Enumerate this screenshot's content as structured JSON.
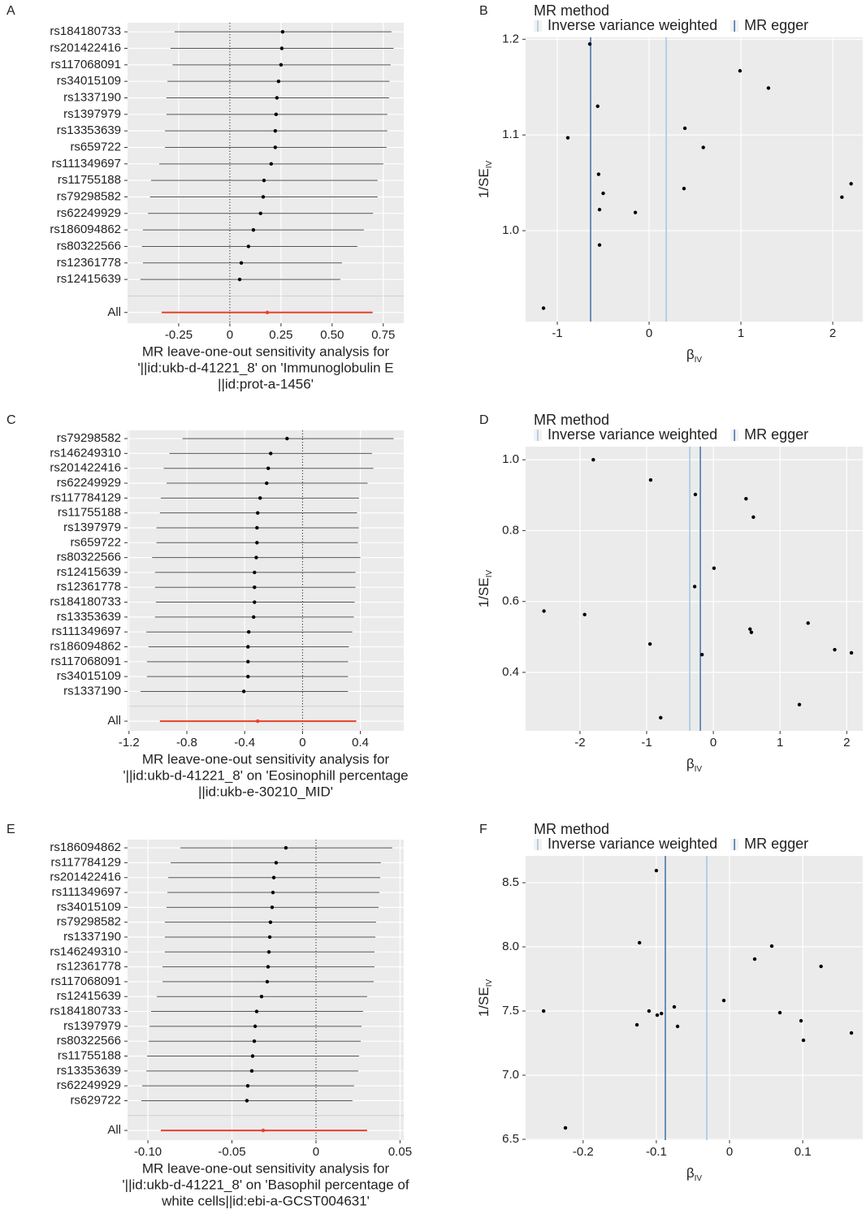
{
  "chart_data": [
    {
      "type": "forest",
      "panel_label": "A",
      "categories": [
        "rs184180733",
        "rs201422416",
        "rs117068091",
        "rs34015109",
        "rs1337190",
        "rs1397979",
        "rs13353639",
        "rs659722",
        "rs111349697",
        "rs11755188",
        "rs79298582",
        "rs62249929",
        "rs186094862",
        "rs80322566",
        "rs12361778",
        "rs12415639"
      ],
      "values": [
        0.258,
        0.254,
        0.25,
        0.238,
        0.23,
        0.226,
        0.222,
        0.222,
        0.202,
        0.167,
        0.163,
        0.15,
        0.115,
        0.091,
        0.056,
        0.048
      ],
      "lower": [
        -0.27,
        -0.29,
        -0.28,
        -0.305,
        -0.31,
        -0.31,
        -0.317,
        -0.317,
        -0.345,
        -0.385,
        -0.39,
        -0.4,
        -0.425,
        -0.43,
        -0.425,
        -0.437
      ],
      "upper": [
        0.79,
        0.8,
        0.786,
        0.78,
        0.778,
        0.77,
        0.77,
        0.766,
        0.75,
        0.722,
        0.722,
        0.7,
        0.655,
        0.623,
        0.548,
        0.54
      ],
      "color": "#000000",
      "overall": {
        "label": "All",
        "value": 0.183,
        "lower": -0.333,
        "upper": 0.698,
        "color": "#e8412c"
      },
      "reference_line": 0,
      "xlim": [
        -0.5,
        0.85
      ],
      "xticks": [
        -0.25,
        0,
        0.25,
        {
          "value": 0.5,
          "label": "0.50"
        },
        0.75
      ],
      "grid": true,
      "xlabel": [
        "MR leave-one-out sensitivity analysis for",
        "'||id:ukb-d-41221_8' on 'Immunoglobulin E",
        "||id:prot-a-1456'"
      ]
    },
    {
      "type": "scatter",
      "panel_label": "B",
      "legend_title": "MR method",
      "x": [
        -0.646,
        0.99,
        1.3,
        -0.56,
        -0.885,
        0.39,
        0.59,
        -0.55,
        2.2,
        -0.5,
        0.38,
        -0.54,
        -0.15,
        2.1,
        -0.54,
        -1.15
      ],
      "values": [
        1.195,
        1.167,
        1.149,
        1.13,
        1.097,
        1.107,
        1.087,
        1.059,
        1.049,
        1.039,
        1.044,
        1.022,
        1.019,
        1.035,
        0.985,
        0.919
      ],
      "color": "#000000",
      "vlines": [
        {
          "name": "Inverse variance weighted",
          "color": "#a6c8e6",
          "value": 0.186
        },
        {
          "name": "MR egger",
          "color": "#4a78ad",
          "value": -0.637
        }
      ],
      "xlim": [
        -1.345,
        2.327
      ],
      "xticks": [
        -1,
        0,
        1,
        2
      ],
      "ylim": [
        0.905,
        1.202
      ],
      "yticks": [
        {
          "value": 1,
          "label": "1.0"
        },
        1.1,
        1.2
      ],
      "grid": true,
      "xlabel": {
        "text": "β",
        "subscript": "IV"
      },
      "ylabel": {
        "text": "1/SE",
        "subscript": "IV"
      }
    },
    {
      "type": "forest",
      "panel_label": "C",
      "categories": [
        "rs79298582",
        "rs146249310",
        "rs201422416",
        "rs62249929",
        "rs117784129",
        "rs11755188",
        "rs1397979",
        "rs659722",
        "rs80322566",
        "rs12415639",
        "rs12361778",
        "rs184180733",
        "rs13353639",
        "rs111349697",
        "rs186094862",
        "rs117068091",
        "rs34015109",
        "rs1337190"
      ],
      "values": [
        -0.107,
        -0.22,
        -0.237,
        -0.248,
        -0.293,
        -0.31,
        -0.315,
        -0.315,
        -0.32,
        -0.332,
        -0.332,
        -0.332,
        -0.338,
        -0.372,
        -0.377,
        -0.377,
        -0.377,
        -0.406
      ],
      "lower": [
        -0.83,
        -0.92,
        -0.96,
        -0.94,
        -0.98,
        -0.986,
        -1.01,
        -1.01,
        -1.04,
        -1.02,
        -1.02,
        -1.014,
        -1.02,
        -1.08,
        -1.065,
        -1.076,
        -1.076,
        -1.12
      ],
      "upper": [
        0.63,
        0.48,
        0.49,
        0.45,
        0.39,
        0.377,
        0.389,
        0.383,
        0.4,
        0.366,
        0.366,
        0.36,
        0.355,
        0.344,
        0.32,
        0.315,
        0.315,
        0.315
      ],
      "color": "#000000",
      "overall": {
        "label": "All",
        "value": -0.31,
        "lower": -0.986,
        "upper": 0.372,
        "color": "#e8412c"
      },
      "reference_line": 0,
      "xlim": [
        -1.21,
        0.7
      ],
      "xticks": [
        -1.2,
        -0.8,
        -0.4,
        0,
        0.4
      ],
      "grid": true,
      "xlabel": [
        "MR leave-one-out sensitivity analysis for",
        "'||id:ukb-d-41221_8' on 'Eosinophill percentage",
        "||id:ukb-e-30210_MID'"
      ]
    },
    {
      "type": "scatter",
      "panel_label": "D",
      "legend_title": "MR method",
      "x": [
        -1.8,
        -0.94,
        -0.27,
        0.49,
        0.6,
        0.01,
        -0.28,
        -2.54,
        -1.93,
        0.55,
        0.57,
        1.42,
        -0.95,
        -0.17,
        1.82,
        2.07,
        1.29,
        -0.79
      ],
      "values": [
        1.0,
        0.943,
        0.902,
        0.89,
        0.838,
        0.694,
        0.642,
        0.573,
        0.563,
        0.522,
        0.513,
        0.539,
        0.48,
        0.45,
        0.464,
        0.455,
        0.309,
        0.272
      ],
      "color": "#000000",
      "vlines": [
        {
          "name": "Inverse variance weighted",
          "color": "#a6c8e6",
          "value": -0.353
        },
        {
          "name": "MR egger",
          "color": "#4a78ad",
          "value": -0.195
        }
      ],
      "xlim": [
        -2.815,
        2.24
      ],
      "xticks": [
        -2,
        -1,
        0,
        1,
        2
      ],
      "ylim": [
        0.235,
        1.037
      ],
      "yticks": [
        {
          "value": 1,
          "label": "1.0"
        },
        0.8,
        0.6,
        0.4
      ],
      "grid": true,
      "xlabel": {
        "text": "β",
        "subscript": "IV"
      },
      "ylabel": {
        "text": "1/SE",
        "subscript": "IV"
      }
    },
    {
      "type": "forest",
      "panel_label": "E",
      "categories": [
        "rs186094862",
        "rs117784129",
        "rs201422416",
        "rs111349697",
        "rs34015109",
        "rs79298582",
        "rs1337190",
        "rs146249310",
        "rs12361778",
        "rs117068091",
        "rs12415639",
        "rs184180733",
        "rs1397979",
        "rs80322566",
        "rs11755188",
        "rs13353639",
        "rs62249929",
        "rs629722"
      ],
      "values": [
        -0.0179,
        -0.0237,
        -0.0251,
        -0.0256,
        -0.0261,
        -0.0271,
        -0.0275,
        -0.028,
        -0.0285,
        -0.029,
        -0.0324,
        -0.0353,
        -0.0362,
        -0.0367,
        -0.0377,
        -0.0382,
        -0.0406,
        -0.0411
      ],
      "lower": [
        -0.0807,
        -0.0865,
        -0.0879,
        -0.0884,
        -0.0889,
        -0.0899,
        -0.0899,
        -0.0899,
        -0.0913,
        -0.0913,
        -0.0947,
        -0.0981,
        -0.099,
        -0.0995,
        -0.1005,
        -0.1009,
        -0.1034,
        -0.1039
      ],
      "upper": [
        0.0454,
        0.0386,
        0.0382,
        0.0377,
        0.0372,
        0.0357,
        0.0353,
        0.0348,
        0.0348,
        0.0343,
        0.0304,
        0.028,
        0.0271,
        0.0266,
        0.0256,
        0.0251,
        0.0227,
        0.0217
      ],
      "color": "#000000",
      "overall": {
        "label": "All",
        "value": -0.0314,
        "lower": -0.0923,
        "upper": 0.0304,
        "color": "#e8412c"
      },
      "reference_line": 0,
      "xlim": [
        -0.1121,
        0.0522
      ],
      "xticks": [
        {
          "value": -0.1,
          "label": "-0.10"
        },
        -0.05,
        0,
        0.05
      ],
      "grid": true,
      "xlabel": [
        "MR leave-one-out sensitivity analysis for",
        "'||id:ukb-d-41221_8' on 'Basophil percentage of",
        "white cells||id:ebi-a-GCST004631'"
      ]
    },
    {
      "type": "scatter",
      "panel_label": "F",
      "legend_title": "MR method",
      "x": [
        -0.1,
        -0.123,
        0.0577,
        0.0344,
        0.125,
        -0.254,
        -0.11,
        -0.0078,
        -0.0755,
        -0.093,
        -0.0988,
        0.0688,
        0.0977,
        -0.1265,
        -0.071,
        0.101,
        0.1665,
        -0.2242
      ],
      "values": [
        8.595,
        8.032,
        8.006,
        7.905,
        7.848,
        7.5,
        7.5,
        7.582,
        7.532,
        7.481,
        7.468,
        7.487,
        7.424,
        7.392,
        7.38,
        7.272,
        7.329,
        6.589
      ],
      "color": "#000000",
      "vlines": [
        {
          "name": "Inverse variance weighted",
          "color": "#a6c8e6",
          "value": -0.0311
        },
        {
          "name": "MR egger",
          "color": "#4a78ad",
          "value": -0.0877
        }
      ],
      "xlim": [
        -0.2786,
        0.182
      ],
      "xticks": [
        -0.2,
        -0.1,
        0,
        0.1
      ],
      "ylim": [
        6.494,
        8.709
      ],
      "yticks": [
        6.5,
        {
          "value": 7,
          "label": "7.0"
        },
        7.5,
        {
          "value": 8,
          "label": "8.0"
        },
        8.5
      ],
      "grid": true,
      "xlabel": {
        "text": "β",
        "subscript": "IV"
      },
      "ylabel": {
        "text": "1/SE",
        "subscript": "IV"
      }
    }
  ]
}
